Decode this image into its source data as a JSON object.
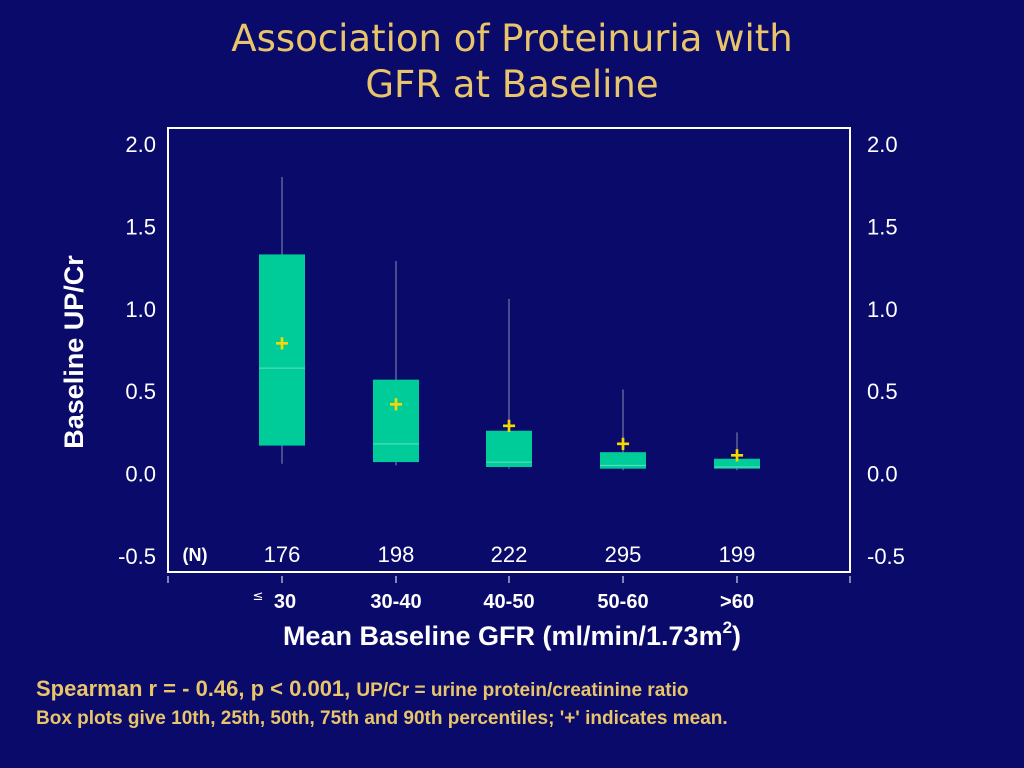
{
  "title": {
    "line1": "Association of Proteinuria with",
    "line2": "GFR at Baseline"
  },
  "chart_data": {
    "type": "box",
    "xlabel_main": "Mean Baseline GFR (ml/min/1.73m",
    "xlabel_sup": "2",
    "xlabel_end": ")",
    "ylabel": "Baseline UP/Cr",
    "ylim": [
      -0.5,
      2.0
    ],
    "yticks": [
      "2.0",
      "1.5",
      "1.0",
      "0.5",
      "0.0",
      "-0.5"
    ],
    "n_label": "(N)",
    "categories": [
      {
        "prefix": "≤",
        "label": "30",
        "n": "176",
        "p10": 0.06,
        "p25": 0.17,
        "p50": 0.64,
        "p75": 1.33,
        "p90": 1.8,
        "mean": 0.79
      },
      {
        "prefix": "",
        "label": "30-40",
        "n": "198",
        "p10": 0.05,
        "p25": 0.07,
        "p50": 0.18,
        "p75": 0.57,
        "p90": 1.29,
        "mean": 0.42
      },
      {
        "prefix": "",
        "label": "40-50",
        "n": "222",
        "p10": 0.03,
        "p25": 0.04,
        "p50": 0.07,
        "p75": 0.26,
        "p90": 1.06,
        "mean": 0.29
      },
      {
        "prefix": "",
        "label": "50-60",
        "n": "295",
        "p10": 0.02,
        "p25": 0.03,
        "p50": 0.05,
        "p75": 0.13,
        "p90": 0.51,
        "mean": 0.18
      },
      {
        "prefix": "",
        "label": ">60",
        "n": "199",
        "p10": 0.02,
        "p25": 0.03,
        "p50": 0.04,
        "p75": 0.09,
        "p90": 0.25,
        "mean": 0.11
      }
    ],
    "mean_marker": "+",
    "colors": {
      "box": "#00cc99",
      "mean": "#f5d800",
      "axis": "#ffffff",
      "background": "#0a0a6b"
    }
  },
  "notes": {
    "line1_bold": "Spearman r = - 0.46, p < 0.001,",
    "line1_rest": "UP/Cr = urine protein/creatinine ratio",
    "line2": "Box plots give 10th, 25th, 50th, 75th and 90th percentiles; '+' indicates mean."
  }
}
